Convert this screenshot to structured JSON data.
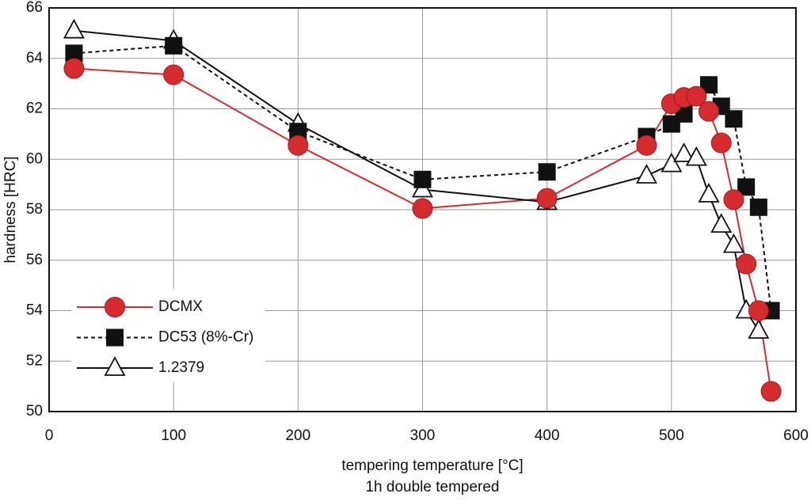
{
  "chart_data": {
    "type": "line",
    "xlabel": "tempering temperature [°C]",
    "xlabel_note": "1h double tempered",
    "ylabel": "hardness [HRC]",
    "xlim": [
      0,
      600
    ],
    "xticks": [
      0,
      100,
      200,
      300,
      400,
      500,
      600
    ],
    "ylim": [
      50,
      66
    ],
    "yticks": [
      50,
      52,
      54,
      56,
      58,
      60,
      62,
      64,
      66
    ],
    "grid": true,
    "legend": "lower left",
    "series": [
      {
        "name": "DCMX",
        "color": "#d62b2f",
        "marker": "circle",
        "linestyle": "solid",
        "x": [
          20,
          100,
          200,
          300,
          400,
          480,
          500,
          510,
          520,
          530,
          540,
          550,
          560,
          570,
          580
        ],
        "values": [
          63.6,
          63.35,
          60.55,
          58.05,
          58.45,
          60.55,
          62.2,
          62.45,
          62.5,
          61.9,
          60.65,
          58.4,
          55.85,
          54.0,
          50.8
        ]
      },
      {
        "name": "DC53 (8%-Cr)",
        "color": "#111111",
        "marker": "square",
        "linestyle": "dashed",
        "x": [
          20,
          100,
          200,
          300,
          400,
          480,
          500,
          510,
          530,
          540,
          550,
          560,
          570,
          580
        ],
        "values": [
          64.2,
          64.5,
          61.1,
          59.2,
          59.5,
          60.9,
          61.4,
          61.8,
          62.95,
          62.1,
          61.6,
          58.9,
          58.1,
          54.0
        ]
      },
      {
        "name": "1.2379",
        "color": "#111111",
        "marker": "triangle",
        "linestyle": "solid",
        "x": [
          20,
          100,
          200,
          300,
          400,
          480,
          500,
          510,
          520,
          530,
          540,
          550,
          560,
          570
        ],
        "values": [
          65.1,
          64.7,
          61.4,
          58.8,
          58.3,
          59.35,
          59.8,
          60.2,
          60.05,
          58.6,
          57.4,
          56.6,
          54.0,
          53.2
        ]
      }
    ]
  }
}
